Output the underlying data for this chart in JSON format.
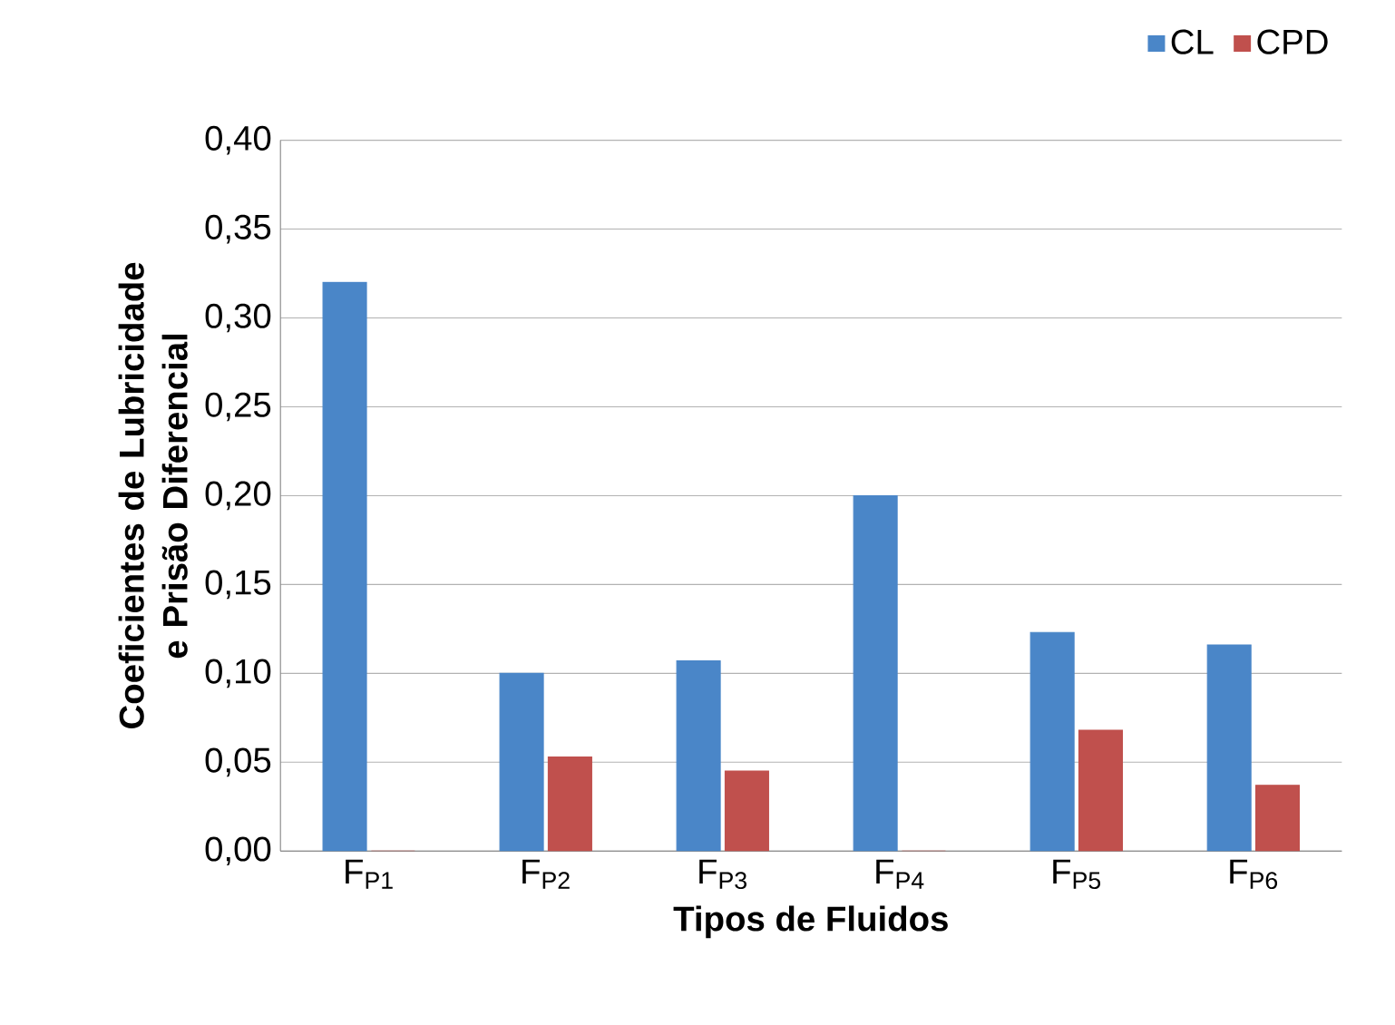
{
  "chart_data": {
    "type": "bar",
    "xlabel": "Tipos de Fluidos",
    "ylabel": "Coeficientes de Lubricidade e Prisão Diferencial",
    "categories": [
      "F$_{P1}$",
      "F$_{P2}$",
      "F$_{P3}$",
      "F$_{P4}$",
      "F$_{P5}$",
      "F$_{P6}$"
    ],
    "series": [
      {
        "name": "CL",
        "color": "#4a86c8",
        "values": [
          0.32,
          0.1,
          0.107,
          0.2,
          0.123,
          0.116
        ]
      },
      {
        "name": "CPD",
        "color": "#c0504d",
        "values": [
          0,
          0.053,
          0.045,
          0,
          0.068,
          0.037
        ]
      }
    ],
    "ylim": [
      0,
      0.4
    ],
    "yticks": [
      {
        "value": 0,
        "label": "0,00"
      },
      {
        "value": 0.05,
        "label": "0,05"
      },
      {
        "value": 0.1,
        "label": "0,10"
      },
      {
        "value": 0.15,
        "label": "0,15"
      },
      {
        "value": 0.2,
        "label": "0,20"
      },
      {
        "value": 0.25,
        "label": "0,25"
      },
      {
        "value": 0.3,
        "label": "0,30"
      },
      {
        "value": 0.35,
        "label": "0,35"
      },
      {
        "value": 0.4,
        "label": "0,40"
      }
    ],
    "grid": "y",
    "legend": "top right"
  }
}
